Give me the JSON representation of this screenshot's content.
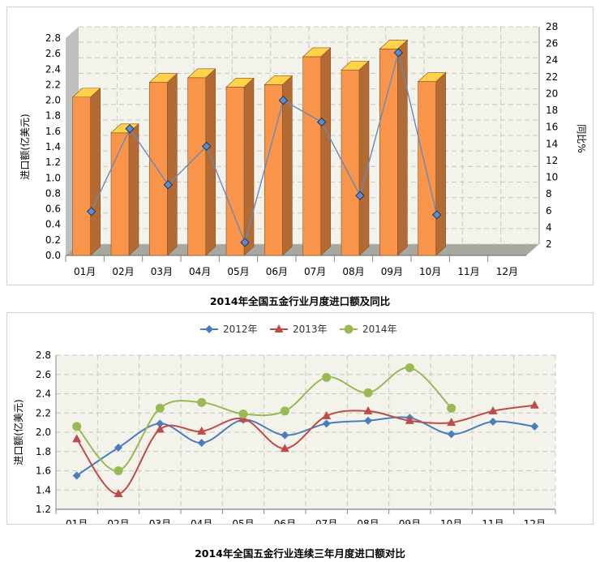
{
  "charts": [
    {
      "type": "bar",
      "title": "2014年全国五金行业月度进口额及同比",
      "categories": [
        "01月",
        "02月",
        "03月",
        "04月",
        "05月",
        "06月",
        "07月",
        "08月",
        "09月",
        "10月",
        "11月",
        "12月"
      ],
      "ylabel": "进口额(亿美元)",
      "y2label": "同比%",
      "ylim": [
        0,
        2.8
      ],
      "yticks": [
        "0.0",
        "0.2",
        "0.4",
        "0.6",
        "0.8",
        "1.0",
        "1.2",
        "1.4",
        "1.6",
        "1.8",
        "2.0",
        "2.2",
        "2.4",
        "2.6",
        "2.8"
      ],
      "y2lim": [
        2,
        28
      ],
      "y2ticks": [
        "2",
        "4",
        "6",
        "8",
        "10",
        "12",
        "14",
        "16",
        "18",
        "20",
        "22",
        "24",
        "26",
        "28"
      ],
      "bars": [
        2.04,
        1.58,
        2.23,
        2.29,
        2.17,
        2.2,
        2.56,
        2.39,
        2.66,
        2.24,
        null,
        null
      ],
      "line": [
        5.9,
        15.8,
        9.1,
        13.7,
        2.2,
        19.2,
        16.6,
        7.8,
        24.9,
        5.5,
        null,
        null
      ],
      "bar_color": "#f8954a",
      "line_color": "#6b88b8",
      "grid": true,
      "three_d": true
    },
    {
      "type": "line",
      "title": "2014年全国五金行业连续三年月度进口额对比",
      "categories": [
        "01月",
        "02月",
        "03月",
        "04月",
        "05月",
        "06月",
        "07月",
        "08月",
        "09月",
        "10月",
        "11月",
        "12月"
      ],
      "ylabel": "进口额(亿美元)",
      "ylim": [
        1.2,
        2.8
      ],
      "yticks": [
        "1.2",
        "1.4",
        "1.6",
        "1.8",
        "2.0",
        "2.2",
        "2.4",
        "2.6",
        "2.8"
      ],
      "legend_position": "top",
      "grid": true,
      "smooth": true,
      "series": [
        {
          "name": "2012年",
          "color": "#4a7ebb",
          "marker": "diamond",
          "values": [
            1.55,
            1.84,
            2.09,
            1.89,
            2.13,
            1.97,
            2.09,
            2.12,
            2.15,
            1.98,
            2.11,
            2.06
          ]
        },
        {
          "name": "2013年",
          "color": "#be4b48",
          "marker": "triangle",
          "values": [
            1.93,
            1.36,
            2.03,
            2.01,
            2.14,
            1.83,
            2.17,
            2.22,
            2.12,
            2.1,
            2.22,
            2.28
          ]
        },
        {
          "name": "2014年",
          "color": "#98b954",
          "marker": "circle",
          "values": [
            2.06,
            1.6,
            2.25,
            2.31,
            2.19,
            2.22,
            2.57,
            2.41,
            2.67,
            2.25,
            null,
            null
          ]
        }
      ]
    }
  ]
}
